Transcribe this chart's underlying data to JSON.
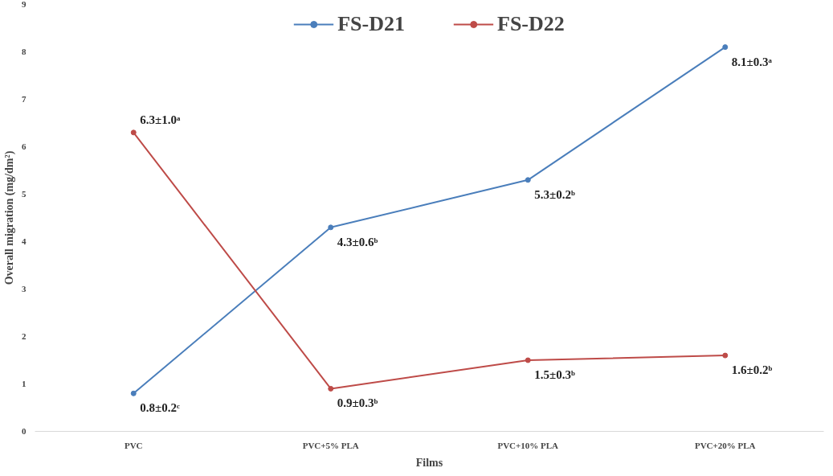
{
  "chart_data": {
    "type": "line",
    "xlabel": "Films",
    "ylabel": "Overall migration (mg/dm²)",
    "categories": [
      "PVC",
      "PVC+5% PLA",
      "PVC+10% PLA",
      "PVC+20% PLA"
    ],
    "series": [
      {
        "name": "FS-D21",
        "color": "#4a7ebb",
        "values": [
          0.8,
          4.3,
          5.3,
          8.1
        ],
        "value_labels": [
          "0.8±0.2ᶜ",
          "4.3±0.6ᵇ",
          "5.3±0.2ᵇ",
          "8.1±0.3ᵃ"
        ]
      },
      {
        "name": "FS-D22",
        "color": "#be4b48",
        "values": [
          6.3,
          0.9,
          1.5,
          1.6
        ],
        "value_labels": [
          "6.3±1.0ᵃ",
          "0.9±0.3ᵇ",
          "1.5±0.3ᵇ",
          "1.6±0.2ᵇ"
        ]
      }
    ],
    "ylim": [
      0,
      9
    ],
    "yticks": [
      0,
      1,
      2,
      3,
      4,
      5,
      6,
      7,
      8,
      9
    ],
    "grid": false,
    "legend": "top",
    "marker": "circle",
    "line_style": "solid"
  }
}
